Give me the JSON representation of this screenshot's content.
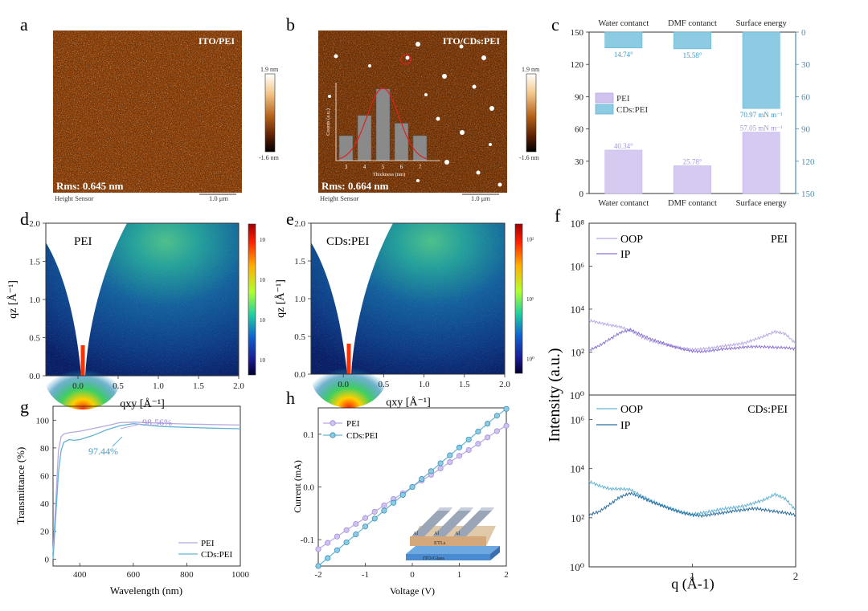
{
  "panel_letters": [
    "a",
    "b",
    "c",
    "d",
    "e",
    "f",
    "g",
    "h"
  ],
  "colors": {
    "pei": "#b8a8e2",
    "pei_dark": "#9c88d6",
    "cds": "#62b3d3",
    "cds_dark": "#2b6f9e",
    "teal_axis": "#4a8fb0"
  },
  "afm": [
    {
      "label": "ITO/PEI",
      "rms": "Rms: 0.645 nm",
      "sensor": "Height Sensor",
      "scale": "1.0 μm",
      "cbar_max": "1.9 nm",
      "cbar_min": "-1.6 nm"
    },
    {
      "label": "ITO/CDs:PEI",
      "rms": "Rms: 0.664 nm",
      "sensor": "Height Sensor",
      "scale": "1.0 μm",
      "cbar_max": "1.9 nm",
      "cbar_min": "-1.6 nm",
      "inset": {
        "ylabel": "Counts (a.u.)",
        "xlabel": "Thickness (nm)",
        "categories": [
          "3",
          "4",
          "5",
          "6",
          "7"
        ],
        "values": [
          0.32,
          0.58,
          0.92,
          0.48,
          0.32
        ]
      }
    }
  ],
  "chart_data": [
    {
      "id": "c",
      "type": "bar",
      "top_categories": [
        "Water contanct",
        "DMF contanct",
        "Surface energy"
      ],
      "bottom_categories": [
        "Water contanct",
        "DMF contanct",
        "Surface energy"
      ],
      "left_ylim": [
        0,
        150
      ],
      "left_yticks": [
        "0",
        "30",
        "60",
        "90",
        "120",
        "150"
      ],
      "right_ylim": [
        150,
        0
      ],
      "right_yticks": [
        "0",
        "30",
        "60",
        "90",
        "120",
        "150"
      ],
      "legend": [
        "PEI",
        "CDs:PEI"
      ],
      "series": [
        {
          "name": "PEI",
          "values": [
            40.34,
            25.78,
            57.05
          ],
          "labels": [
            "40.34°",
            "25.78°",
            "57.05 mN m⁻¹"
          ]
        },
        {
          "name": "CDs:PEI",
          "values": [
            14.74,
            15.58,
            70.97
          ],
          "labels": [
            "14.74°",
            "15.58°",
            "70.97 mN m⁻¹"
          ]
        }
      ]
    },
    {
      "id": "d",
      "type": "heatmap",
      "label": "PEI",
      "ylabel": "qz [Å⁻¹]",
      "xlabel": "qxy [Å⁻¹]",
      "xlim": [
        -0.4,
        2.0
      ],
      "ylim": [
        0,
        2.0
      ],
      "xticks": [
        "0.0",
        "0.5",
        "1.0",
        "1.5",
        "2.0"
      ],
      "yticks": [
        "0.0",
        "0.5",
        "1.0",
        "1.5",
        "2.0"
      ],
      "cbar_ticks": [
        "10",
        "10",
        "10",
        "10"
      ]
    },
    {
      "id": "e",
      "type": "heatmap",
      "label": "CDs:PEI",
      "ylabel": "qz [Å⁻¹]",
      "xlabel": "qxy [Å⁻¹]",
      "xlim": [
        -0.4,
        2.0
      ],
      "ylim": [
        0,
        2.0
      ],
      "xticks": [
        "0.0",
        "0.5",
        "1.0",
        "1.5",
        "2.0"
      ],
      "yticks": [
        "0.0",
        "0.5",
        "1.0",
        "1.5",
        "2.0"
      ],
      "cbar_ticks": [
        "10²",
        "10¹",
        "10⁰"
      ]
    },
    {
      "id": "f",
      "type": "line",
      "ylabel": "Intensity (a.u.)",
      "xlabel": "q (Å-1)",
      "xticks": [
        "1",
        "2"
      ],
      "top": {
        "label": "PEI",
        "legend": [
          "OOP",
          "IP"
        ],
        "yticks": [
          "10⁰",
          "10²",
          "10⁴",
          "10⁶",
          "10⁸"
        ]
      },
      "bottom": {
        "label": "CDs:PEI",
        "legend": [
          "OOP",
          "IP"
        ],
        "yticks": [
          "10⁰",
          "10²",
          "10⁴",
          "10⁶"
        ]
      },
      "x": [
        0.0,
        0.1,
        0.2,
        0.3,
        0.4,
        0.5,
        0.6,
        0.7,
        0.8,
        0.9,
        1.0,
        1.1,
        1.2,
        1.3,
        1.4,
        1.5,
        1.6,
        1.7,
        1.8,
        1.9,
        2.0
      ],
      "series": [
        {
          "name": "OOP",
          "panel": "PEI",
          "values": [
            3000,
            2300,
            1800,
            1500,
            1000,
            520,
            330,
            250,
            190,
            150,
            130,
            140,
            160,
            190,
            220,
            260,
            380,
            560,
            900,
            700,
            250
          ]
        },
        {
          "name": "IP",
          "panel": "PEI",
          "values": [
            120,
            200,
            400,
            800,
            1100,
            650,
            400,
            280,
            190,
            140,
            110,
            105,
            120,
            140,
            150,
            170,
            180,
            175,
            165,
            160,
            140
          ]
        },
        {
          "name": "OOP",
          "panel": "CDs:PEI",
          "values": [
            3000,
            2000,
            1500,
            1500,
            1400,
            800,
            500,
            320,
            230,
            170,
            140,
            160,
            190,
            230,
            260,
            300,
            400,
            550,
            900,
            600,
            200
          ]
        },
        {
          "name": "IP",
          "panel": "CDs:PEI",
          "values": [
            130,
            180,
            350,
            700,
            1000,
            700,
            450,
            320,
            220,
            160,
            130,
            120,
            140,
            160,
            190,
            210,
            240,
            210,
            180,
            160,
            130
          ]
        }
      ]
    },
    {
      "id": "g",
      "type": "line",
      "ylabel": "Transmittance (%)",
      "xlabel": "Wavelength (nm)",
      "xlim": [
        300,
        1000
      ],
      "ylim": [
        -5,
        110
      ],
      "xticks": [
        "400",
        "600",
        "800",
        "1000"
      ],
      "yticks": [
        "0",
        "20",
        "40",
        "60",
        "80",
        "100"
      ],
      "annotations": [
        "98.56%",
        "97.44%"
      ],
      "legend": [
        "PEI",
        "CDs:PEI"
      ],
      "x": [
        300,
        310,
        320,
        330,
        340,
        360,
        380,
        400,
        450,
        500,
        550,
        600,
        650,
        700,
        800,
        900,
        1000
      ],
      "series": [
        {
          "name": "PEI",
          "values": [
            5,
            40,
            78,
            88,
            90,
            91,
            91.5,
            92,
            94,
            96,
            98.2,
            98.56,
            98.2,
            97.8,
            97.2,
            96.8,
            96.5
          ]
        },
        {
          "name": "CDs:PEI",
          "values": [
            0,
            30,
            62,
            78,
            84,
            86,
            85.5,
            86,
            89,
            93,
            96,
            97.44,
            96.5,
            95.5,
            94.8,
            94.2,
            93.8
          ]
        }
      ]
    },
    {
      "id": "h",
      "type": "line",
      "ylabel": "Current (mA)",
      "xlabel": "Voltage (V)",
      "xlim": [
        -2,
        2
      ],
      "ylim": [
        -0.15,
        0.15
      ],
      "xticks": [
        "-2",
        "-1",
        "0",
        "1",
        "2"
      ],
      "yticks": [
        "-0.1",
        "0.0",
        "0.1"
      ],
      "legend": [
        "PEI",
        "CDs:PEI"
      ],
      "x": [
        -2,
        -1.8,
        -1.6,
        -1.4,
        -1.2,
        -1.0,
        -0.8,
        -0.6,
        -0.4,
        -0.2,
        0,
        0.2,
        0.4,
        0.6,
        0.8,
        1.0,
        1.2,
        1.4,
        1.6,
        1.8,
        2.0
      ],
      "series": [
        {
          "name": "PEI",
          "values": [
            -0.118,
            -0.106,
            -0.094,
            -0.082,
            -0.07,
            -0.059,
            -0.047,
            -0.035,
            -0.023,
            -0.012,
            0.0,
            0.012,
            0.023,
            0.035,
            0.047,
            0.059,
            0.07,
            0.082,
            0.094,
            0.106,
            0.116
          ]
        },
        {
          "name": "CDs:PEI",
          "values": [
            -0.15,
            -0.135,
            -0.12,
            -0.105,
            -0.09,
            -0.075,
            -0.06,
            -0.045,
            -0.03,
            -0.015,
            0.0,
            0.015,
            0.03,
            0.045,
            0.06,
            0.075,
            0.09,
            0.105,
            0.12,
            0.135,
            0.148
          ]
        }
      ],
      "inset_labels": {
        "electrode": "Al",
        "etl": "ETLs",
        "substrate": "ITO/Glass"
      }
    }
  ]
}
